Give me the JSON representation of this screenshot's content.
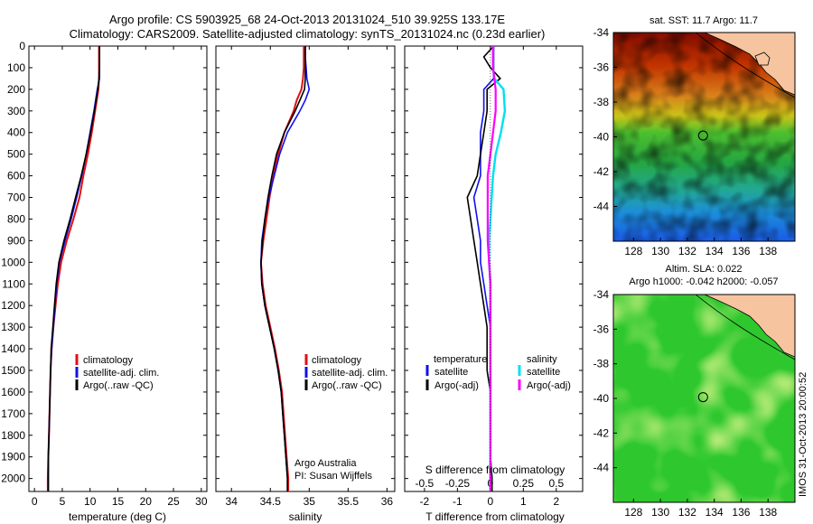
{
  "header": {
    "line1": "Argo profile: CS 5903925_68 24-Oct-2013 20131024_510 39.925S 133.17E",
    "line2": "Climatology: CARS2009. Satellite-adjusted climatology: synTS_20131024.nc (0.23d earlier)"
  },
  "colors": {
    "climatology": "#e01010",
    "satellite": "#1010ee",
    "argo": "#000000",
    "sal_satellite": "#00e0f0",
    "sal_argo": "#ff00ff",
    "land": "#f7c4a0"
  },
  "chart_data": [
    {
      "type": "line",
      "panel": "temperature",
      "xlabel": "temperature (deg C)",
      "ylabel": "",
      "xlim": [
        -1,
        31
      ],
      "ylim": [
        2060,
        0
      ],
      "xticks": [
        "0",
        "5",
        "10",
        "15",
        "20",
        "25",
        "30"
      ],
      "yticks": [
        "0",
        "100",
        "200",
        "300",
        "400",
        "500",
        "600",
        "700",
        "800",
        "900",
        "1000",
        "1100",
        "1200",
        "1300",
        "1400",
        "1500",
        "1600",
        "1700",
        "1800",
        "1900",
        "2000"
      ],
      "depth": [
        0,
        50,
        100,
        150,
        200,
        300,
        400,
        500,
        600,
        700,
        800,
        900,
        1000,
        1100,
        1200,
        1300,
        1400,
        1500,
        1600,
        1700,
        1800,
        1900,
        2000,
        2060
      ],
      "series": [
        {
          "name": "climatology",
          "values": [
            11.6,
            11.6,
            11.6,
            11.6,
            11.5,
            10.9,
            10.3,
            9.6,
            8.8,
            8.1,
            7.0,
            5.8,
            4.8,
            4.2,
            3.8,
            3.4,
            3.1,
            2.9,
            2.8,
            2.7,
            2.6,
            2.5,
            2.4,
            2.4
          ]
        },
        {
          "name": "satellite-adj. clim.",
          "values": [
            11.7,
            11.7,
            11.7,
            11.7,
            11.3,
            10.7,
            10.0,
            9.3,
            8.5,
            7.6,
            6.6,
            5.5,
            4.5,
            4.0,
            3.7,
            3.4,
            3.1,
            2.9,
            2.8,
            2.7,
            2.6,
            2.5,
            2.5,
            2.5
          ]
        },
        {
          "name": "Argo(..raw -QC)",
          "values": [
            11.7,
            11.7,
            11.7,
            11.6,
            11.4,
            10.8,
            10.1,
            9.3,
            8.4,
            7.4,
            6.4,
            5.3,
            4.4,
            3.9,
            3.6,
            3.3,
            3.0,
            2.9,
            2.8,
            2.7,
            2.6,
            2.5,
            2.5,
            2.5
          ]
        }
      ],
      "legend": [
        "climatology",
        "satellite-adj. clim.",
        "Argo(..raw -QC)"
      ]
    },
    {
      "type": "line",
      "panel": "salinity",
      "xlabel": "salinity",
      "ylabel": "",
      "xlim": [
        33.8,
        36.1
      ],
      "ylim": [
        2060,
        0
      ],
      "xticks": [
        "34",
        "34.5",
        "35",
        "35.5",
        "36"
      ],
      "depth": [
        0,
        50,
        100,
        150,
        200,
        250,
        300,
        400,
        500,
        600,
        700,
        800,
        900,
        1000,
        1100,
        1200,
        1300,
        1400,
        1500,
        1600,
        1700,
        1800,
        1900,
        2000,
        2060
      ],
      "series": [
        {
          "name": "climatology",
          "values": [
            34.93,
            34.93,
            34.93,
            34.92,
            34.9,
            34.84,
            34.8,
            34.68,
            34.6,
            34.54,
            34.49,
            34.45,
            34.41,
            34.38,
            34.4,
            34.44,
            34.5,
            34.56,
            34.61,
            34.65,
            34.67,
            34.69,
            34.71,
            34.73,
            34.73
          ]
        },
        {
          "name": "satellite-adj. clim.",
          "values": [
            34.95,
            34.95,
            34.96,
            34.97,
            35.0,
            34.95,
            34.88,
            34.72,
            34.62,
            34.55,
            34.48,
            34.43,
            34.39,
            34.38,
            34.39,
            34.43,
            34.49,
            34.55,
            34.6,
            34.64,
            34.66,
            34.68,
            34.7,
            34.72,
            34.72
          ]
        },
        {
          "name": "Argo(..raw -QC)",
          "values": [
            34.95,
            34.95,
            34.95,
            34.95,
            34.94,
            34.88,
            34.82,
            34.68,
            34.58,
            34.52,
            34.47,
            34.43,
            34.4,
            34.38,
            34.39,
            34.43,
            34.49,
            34.55,
            34.6,
            34.64,
            34.66,
            34.68,
            34.7,
            34.72,
            34.72
          ]
        }
      ],
      "legend": [
        "climatology",
        "satellite-adj. clim.",
        "Argo(..raw -QC)"
      ],
      "annotation": [
        "Argo Australia",
        "PI: Susan Wijffels"
      ]
    },
    {
      "type": "line",
      "panel": "difference",
      "xlabel": "T difference from climatology",
      "xlabel_top": "S difference from climatology",
      "xlim": [
        -2.6,
        2.8
      ],
      "ylim": [
        2060,
        0
      ],
      "xticks": [
        "-2",
        "-1",
        "0",
        "1",
        "2"
      ],
      "xticks_top": [
        "-0.5",
        "-0.25",
        "0",
        "0.25",
        "0.5"
      ],
      "s_scale": 4,
      "depth": [
        0,
        50,
        100,
        150,
        200,
        300,
        400,
        500,
        600,
        700,
        800,
        900,
        1000,
        1100,
        1200,
        1300,
        1400,
        1500,
        1600,
        1700,
        1800,
        1900,
        2000,
        2060
      ],
      "series": [
        {
          "name": "temperature satellite",
          "values": [
            0.1,
            0.1,
            0.1,
            0.1,
            -0.2,
            -0.2,
            -0.3,
            -0.3,
            -0.3,
            -0.5,
            -0.4,
            -0.3,
            -0.3,
            -0.2,
            -0.1,
            0,
            0,
            0,
            0,
            0,
            0,
            0,
            0.05,
            0.05
          ]
        },
        {
          "name": "temperature Argo(-adj)",
          "values": [
            0.1,
            -0.2,
            0,
            0.3,
            -0.1,
            -0.1,
            -0.2,
            -0.3,
            -0.4,
            -0.7,
            -0.6,
            -0.5,
            -0.4,
            -0.3,
            -0.2,
            -0.1,
            -0.1,
            -0.1,
            0,
            0,
            0,
            0,
            0.05,
            0.05
          ]
        },
        {
          "name": "salinity satellite",
          "values": [
            0.02,
            0.02,
            0.02,
            0.03,
            0.1,
            0.11,
            0.08,
            0.04,
            0.02,
            0.01,
            0.0,
            -0.01,
            -0.01,
            0.0,
            0.0,
            0.0,
            0.0,
            0.0,
            0.0,
            0.0,
            0.0,
            0.0,
            0.0,
            0.0
          ]
        },
        {
          "name": "salinity Argo(-adj)",
          "values": [
            0.02,
            0.02,
            0.02,
            0.03,
            0.04,
            0.04,
            0.02,
            0.0,
            -0.02,
            -0.02,
            -0.02,
            -0.02,
            -0.01,
            0.0,
            0.0,
            0.0,
            0.0,
            0.0,
            0.0,
            0.0,
            0.0,
            0.0,
            0.0,
            0.0
          ]
        }
      ],
      "legend_headers": [
        "temperature",
        "salinity"
      ],
      "legend": [
        "satellite",
        "Argo(-adj)",
        "satellite",
        "Argo(-adj)"
      ]
    },
    {
      "type": "heatmap",
      "panel": "sst-map",
      "title": "sat. SST: 11.7 Argo: 11.7",
      "xlim": [
        126.5,
        140
      ],
      "ylim": [
        -46,
        -34
      ],
      "xticks": [
        "128",
        "130",
        "132",
        "134",
        "136",
        "138"
      ],
      "yticks": [
        "-34",
        "-36",
        "-38",
        "-40",
        "-42",
        "-44"
      ],
      "marker": [
        133.17,
        -39.925
      ]
    },
    {
      "type": "heatmap",
      "panel": "sla-map",
      "title": "Altim. SLA: 0.022",
      "subtitle": "Argo h1000: -0.042 h2000: -0.057",
      "xlim": [
        126.5,
        140
      ],
      "ylim": [
        -46,
        -34
      ],
      "xticks": [
        "128",
        "130",
        "132",
        "134",
        "136",
        "138"
      ],
      "yticks": [
        "-34",
        "-36",
        "-38",
        "-40",
        "-42",
        "-44"
      ],
      "marker": [
        133.17,
        -39.925
      ]
    }
  ],
  "footer": {
    "stamp": "IMOS 31-Oct-2013 20:00:52"
  }
}
